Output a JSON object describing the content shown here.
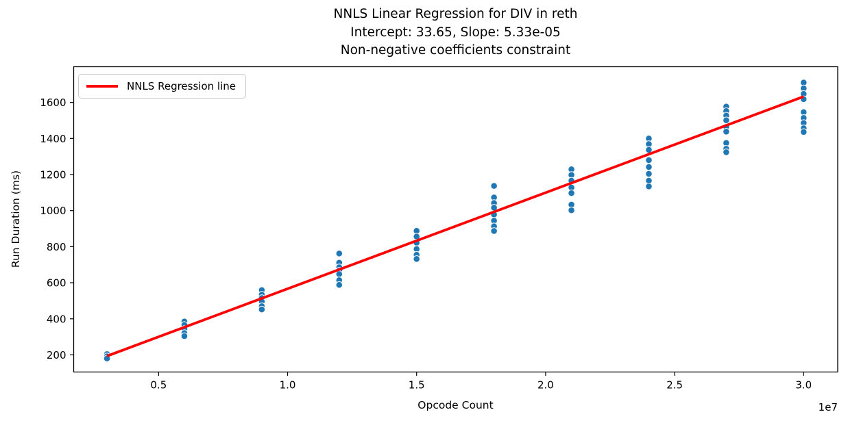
{
  "chart_data": {
    "type": "scatter",
    "title_line1": "NNLS Linear Regression for DIV in reth",
    "title_line2": "Intercept: 33.65, Slope: 5.33e-05",
    "title_line3": "Non-negative coefficients constraint",
    "xlabel": "Opcode Count",
    "ylabel": "Run Duration (ms)",
    "x_offset_label": "1e7",
    "xlim": [
      1710000,
      31320000
    ],
    "ylim": [
      105,
      1798
    ],
    "grid": false,
    "legend": {
      "position": "upper left",
      "entries": [
        {
          "label": "NNLS Regression line",
          "type": "line",
          "color": "#ff0000"
        }
      ]
    },
    "x_ticks": {
      "values": [
        5000000,
        10000000,
        15000000,
        20000000,
        25000000,
        30000000
      ],
      "labels": [
        "0.5",
        "1.0",
        "1.5",
        "2.0",
        "2.5",
        "3.0"
      ]
    },
    "y_ticks": {
      "values": [
        200,
        400,
        600,
        800,
        1000,
        1200,
        1400,
        1600
      ],
      "labels": [
        "200",
        "400",
        "600",
        "800",
        "1000",
        "1200",
        "1400",
        "1600"
      ]
    },
    "scatter": {
      "marker_color": "#1f77b4",
      "marker_edge_color": "#ffffff",
      "clusters": [
        {
          "x": 3000000,
          "y": [
            204,
            192,
            180
          ]
        },
        {
          "x": 6000000,
          "y": [
            385,
            366,
            344,
            321,
            304
          ]
        },
        {
          "x": 9000000,
          "y": [
            559,
            534,
            515,
            496,
            470,
            452
          ]
        },
        {
          "x": 12000000,
          "y": [
            762,
            711,
            686,
            667,
            648,
            614,
            588
          ]
        },
        {
          "x": 15000000,
          "y": [
            888,
            856,
            822,
            787,
            755,
            732
          ]
        },
        {
          "x": 18000000,
          "y": [
            1137,
            1073,
            1042,
            1016,
            978,
            944,
            913,
            887
          ]
        },
        {
          "x": 21000000,
          "y": [
            1229,
            1198,
            1166,
            1128,
            1097,
            1033,
            1002
          ]
        },
        {
          "x": 24000000,
          "y": [
            1400,
            1369,
            1337,
            1280,
            1242,
            1204,
            1166,
            1134
          ]
        },
        {
          "x": 27000000,
          "y": [
            1577,
            1552,
            1527,
            1501,
            1464,
            1438,
            1375,
            1343,
            1324
          ]
        },
        {
          "x": 30000000,
          "y": [
            1710,
            1678,
            1647,
            1618,
            1546,
            1514,
            1486,
            1457,
            1436
          ]
        }
      ]
    },
    "regression_line": {
      "intercept": 33.65,
      "slope": 5.33e-05,
      "x_start": 3000000,
      "x_end": 30000000,
      "color": "#ff0000"
    }
  }
}
